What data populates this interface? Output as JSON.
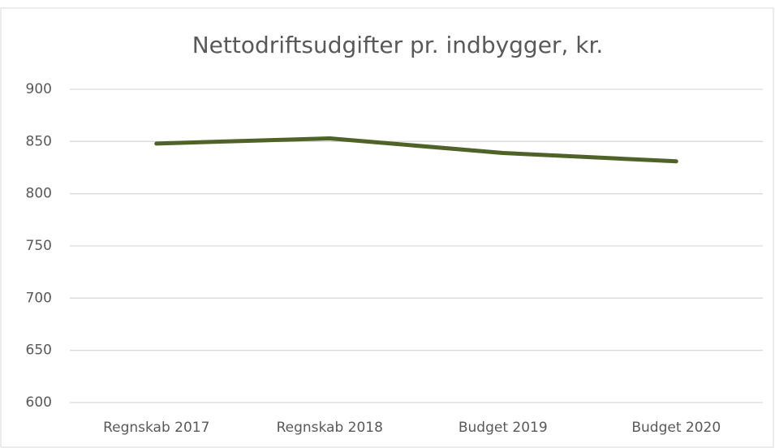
{
  "chart_data": {
    "type": "line",
    "title": "Nettodriftsudgifter pr. indbygger, kr.",
    "categories": [
      "Regnskab 2017",
      "Regnskab 2018",
      "Budget 2019",
      "Budget 2020"
    ],
    "values": [
      848,
      853,
      839,
      831
    ],
    "color": "#4f6228",
    "ylim": [
      600,
      900
    ],
    "yticks": [
      600,
      650,
      700,
      750,
      800,
      850,
      900
    ],
    "grid": true
  }
}
